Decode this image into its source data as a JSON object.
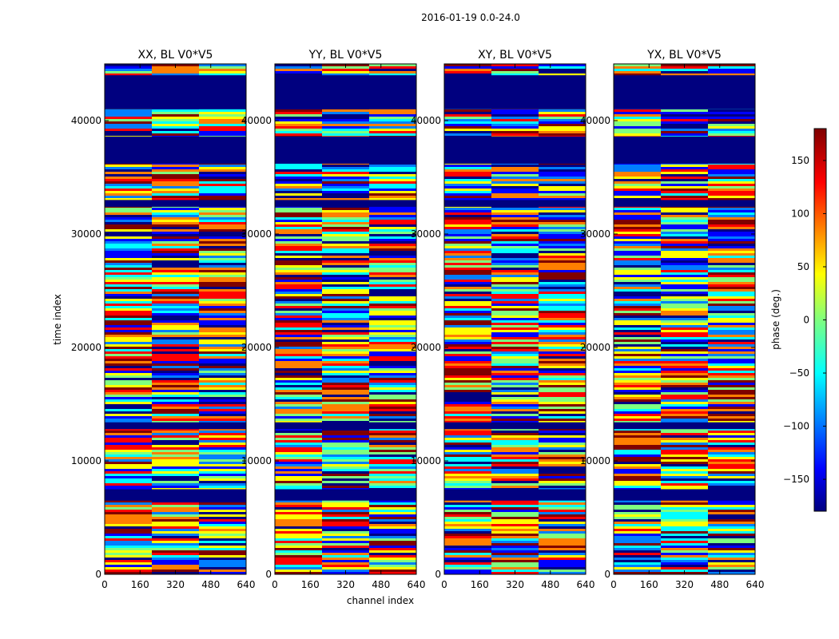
{
  "chart_data": {
    "type": "heatmap",
    "suptitle": "2016-01-19 0.0-24.0",
    "xlabel": "channel index",
    "ylabel": "time index",
    "xlim": [
      0,
      640
    ],
    "ylim": [
      0,
      45000
    ],
    "x_ticks": [
      0,
      160,
      320,
      480,
      640
    ],
    "y_ticks": [
      0,
      10000,
      20000,
      30000,
      40000
    ],
    "panels": [
      {
        "title": "XX, BL V0*V5",
        "polarization": "XX"
      },
      {
        "title": "YY, BL V0*V5",
        "polarization": "YY"
      },
      {
        "title": "XY, BL V0*V5",
        "polarization": "XY"
      },
      {
        "title": "YX, BL V0*V5",
        "polarization": "YX"
      }
    ],
    "colorbar": {
      "label": "phase (deg.)",
      "range": [
        -180,
        180
      ],
      "ticks": [
        -150,
        -100,
        -50,
        0,
        50,
        100,
        150
      ],
      "colormap": "jet"
    },
    "flagged_bands": [
      {
        "y_start": 41000,
        "y_end": 44000
      },
      {
        "y_start": 36200,
        "y_end": 38600
      },
      {
        "y_start": 32400,
        "y_end": 33000
      },
      {
        "y_start": 12800,
        "y_end": 13400
      },
      {
        "y_start": 6500,
        "y_end": 7500
      }
    ],
    "colors": {
      "flag": "#00007f",
      "jet": [
        "#00007f",
        "#0000ff",
        "#007fff",
        "#00ffff",
        "#7fff7f",
        "#ffff00",
        "#ff7f00",
        "#ff0000",
        "#7f0000"
      ]
    }
  }
}
